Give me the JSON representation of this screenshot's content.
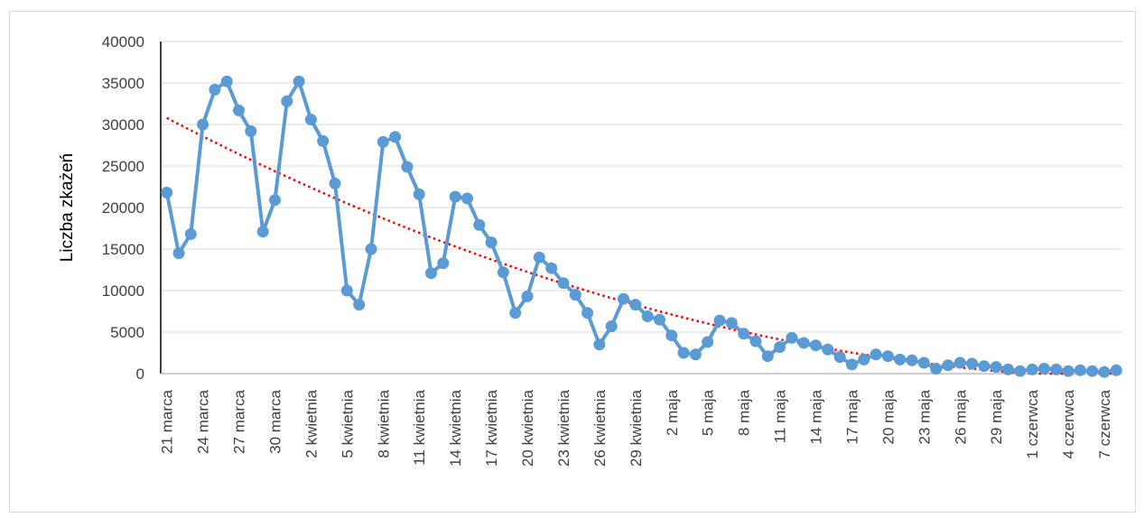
{
  "chart_data": {
    "type": "line",
    "title": "",
    "xlabel": "",
    "ylabel": "Liczba zkażeń",
    "ylim": [
      0,
      40000
    ],
    "yticks": [
      0,
      5000,
      10000,
      15000,
      20000,
      25000,
      30000,
      35000,
      40000
    ],
    "grid": true,
    "legend": "none",
    "categories": [
      "21 marca",
      "22 marca",
      "23 marca",
      "24 marca",
      "25 marca",
      "26 marca",
      "27 marca",
      "28 marca",
      "29 marca",
      "30 marca",
      "31 marca",
      "1 kwietnia",
      "2 kwietnia",
      "3 kwietnia",
      "4 kwietnia",
      "5 kwietnia",
      "6 kwietnia",
      "7 kwietnia",
      "8 kwietnia",
      "9 kwietnia",
      "10 kwietnia",
      "11 kwietnia",
      "12 kwietnia",
      "13 kwietnia",
      "14 kwietnia",
      "15 kwietnia",
      "16 kwietnia",
      "17 kwietnia",
      "18 kwietnia",
      "19 kwietnia",
      "20 kwietnia",
      "21 kwietnia",
      "22 kwietnia",
      "23 kwietnia",
      "24 kwietnia",
      "25 kwietnia",
      "26 kwietnia",
      "27 kwietnia",
      "28 kwietnia",
      "29 kwietnia",
      "30 kwietnia",
      "1 maja",
      "2 maja",
      "3 maja",
      "4 maja",
      "5 maja",
      "6 maja",
      "7 maja",
      "8 maja",
      "9 maja",
      "10 maja",
      "11 maja",
      "12 maja",
      "13 maja",
      "14 maja",
      "15 maja",
      "16 maja",
      "17 maja",
      "18 maja",
      "19 maja",
      "20 maja",
      "21 maja",
      "22 maja",
      "23 maja",
      "24 maja",
      "25 maja",
      "26 maja",
      "27 maja",
      "28 maja",
      "29 maja",
      "30 maja",
      "31 maja",
      "1 czerwca",
      "2 czerwca",
      "3 czerwca",
      "4 czerwca",
      "5 czerwca",
      "6 czerwca",
      "7 czerwca",
      "8 czerwca"
    ],
    "tick_labels": [
      "21 marca",
      "24 marca",
      "27 marca",
      "30 marca",
      "2 kwietnia",
      "5 kwietnia",
      "8 kwietnia",
      "11 kwietnia",
      "14 kwietnia",
      "17 kwietnia",
      "20 kwietnia",
      "23 kwietnia",
      "26 kwietnia",
      "29 kwietnia",
      "2 maja",
      "5 maja",
      "8 maja",
      "11 maja",
      "14 maja",
      "17 maja",
      "20 maja",
      "23 maja",
      "26 maja",
      "29 maja",
      "1 czerwca",
      "4 czerwca",
      "7 czerwca"
    ],
    "series": [
      {
        "name": "",
        "color": "#5b9bd5",
        "values": [
          21800,
          14500,
          16800,
          30000,
          34200,
          35200,
          31700,
          29200,
          17100,
          20900,
          32800,
          35200,
          30600,
          28000,
          22900,
          10000,
          8300,
          15000,
          27900,
          28500,
          24900,
          21600,
          12100,
          13300,
          21300,
          21100,
          17900,
          15800,
          12200,
          7300,
          9300,
          14000,
          12700,
          10900,
          9500,
          7300,
          3500,
          5700,
          9000,
          8300,
          6900,
          6500,
          4600,
          2500,
          2300,
          3800,
          6400,
          6100,
          4800,
          3900,
          2100,
          3200,
          4300,
          3700,
          3400,
          2900,
          2000,
          1100,
          1700,
          2300,
          2100,
          1700,
          1600,
          1300,
          600,
          1000,
          1300,
          1200,
          900,
          800,
          500,
          300,
          500,
          600,
          500,
          300,
          400,
          300,
          200,
          400
        ]
      }
    ],
    "trendline": {
      "type": "polynomial",
      "color": "#ff0000",
      "style": "dotted"
    }
  }
}
